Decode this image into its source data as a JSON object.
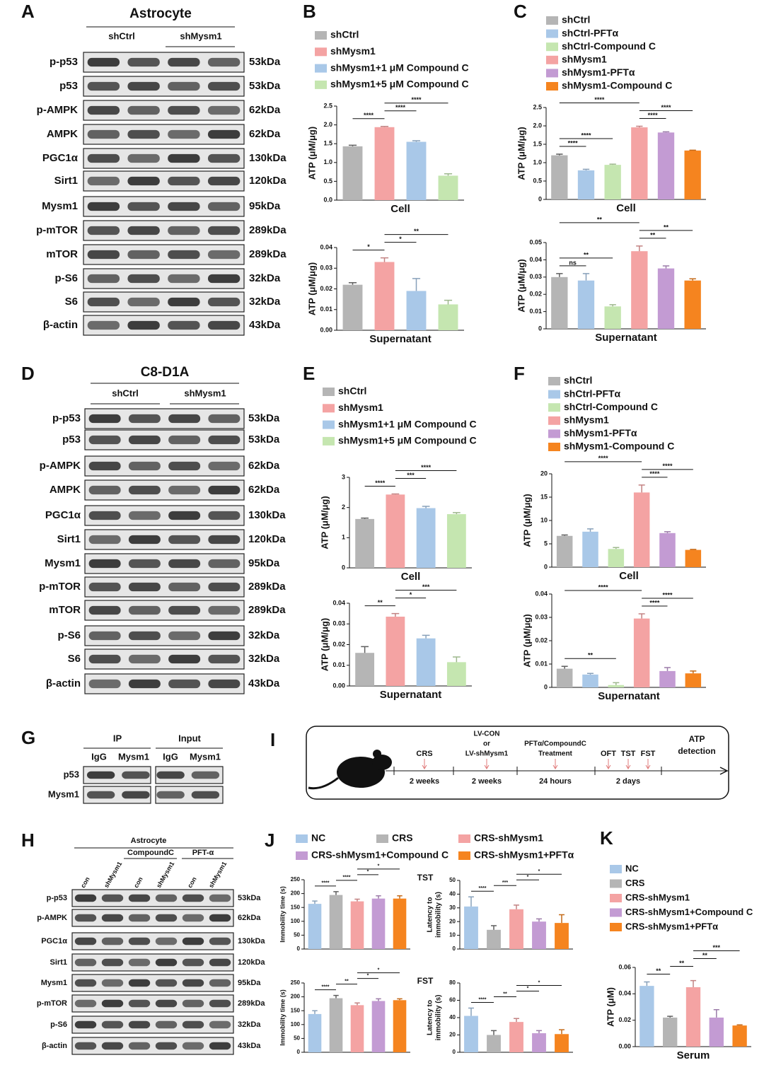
{
  "panel_letters": [
    "A",
    "B",
    "C",
    "D",
    "E",
    "F",
    "G",
    "H",
    "I",
    "J",
    "K"
  ],
  "blots": [
    {
      "title": "Astrocyte",
      "groups": [
        "shCtrl",
        "shMysm1"
      ],
      "rows": [
        {
          "label": "p-p53",
          "size": "53kDa"
        },
        {
          "label": "p53",
          "size": "53kDa"
        },
        {
          "label": "p-AMPK",
          "size": "62kDa"
        },
        {
          "label": "AMPK",
          "size": "62kDa"
        },
        {
          "label": "PGC1α",
          "size": "130kDa"
        },
        {
          "label": "Sirt1",
          "size": "120kDa"
        },
        {
          "label": "Mysm1",
          "size": "95kDa"
        },
        {
          "label": "p-mTOR",
          "size": "289kDa"
        },
        {
          "label": "mTOR",
          "size": "289kDa"
        },
        {
          "label": "p-S6",
          "size": "32kDa"
        },
        {
          "label": "S6",
          "size": "32kDa"
        },
        {
          "label": "β-actin",
          "size": "43kDa"
        }
      ]
    },
    {
      "title": "C8-D1A",
      "groups": [
        "shCtrl",
        "shMysm1"
      ],
      "rows": [
        {
          "label": "p-p53",
          "size": "53kDa"
        },
        {
          "label": "p53",
          "size": "53kDa"
        },
        {
          "label": "p-AMPK",
          "size": "62kDa"
        },
        {
          "label": "AMPK",
          "size": "62kDa"
        },
        {
          "label": "PGC1α",
          "size": "130kDa"
        },
        {
          "label": "Sirt1",
          "size": "120kDa"
        },
        {
          "label": "Mysm1",
          "size": "95kDa"
        },
        {
          "label": "p-mTOR",
          "size": "289kDa"
        },
        {
          "label": "mTOR",
          "size": "289kDa"
        },
        {
          "label": "p-S6",
          "size": "32kDa"
        },
        {
          "label": "S6",
          "size": "32kDa"
        },
        {
          "label": "β-actin",
          "size": "43kDa"
        }
      ]
    },
    {
      "groups": [
        "IP",
        "Input"
      ],
      "lanes": [
        "IgG",
        "Mysm1",
        "IgG",
        "Mysm1"
      ],
      "rows": [
        {
          "label": "p53"
        },
        {
          "label": "Mysm1"
        }
      ]
    },
    {
      "title": "Astrocyte",
      "groups": [
        "CompoundC",
        "PFT-α"
      ],
      "lanes": [
        "con",
        "shMysm1",
        "con",
        "shMysm1",
        "con",
        "shMysm1"
      ],
      "rows": [
        {
          "label": "p-p53",
          "size": "53kDa"
        },
        {
          "label": "p-AMPK",
          "size": "62kDa"
        },
        {
          "label": "PGC1α",
          "size": "130kDa"
        },
        {
          "label": "Sirt1",
          "size": "120kDa"
        },
        {
          "label": "Mysm1",
          "size": "95kDa"
        },
        {
          "label": "p-mTOR",
          "size": "289kDa"
        },
        {
          "label": "p-S6",
          "size": "32kDa"
        },
        {
          "label": "β-actin",
          "size": "43kDa"
        }
      ]
    }
  ],
  "diagram": {
    "steps": [
      {
        "event": [
          "CRS"
        ],
        "duration": "2 weeks"
      },
      {
        "event": [
          "LV-CON",
          "or",
          "LV-shMysm1"
        ],
        "duration": "2 weeks"
      },
      {
        "event": [
          "PFTα/CompoundC",
          "Treatment"
        ],
        "duration": "24 hours"
      },
      {
        "event": [
          "OFT",
          "TST",
          "FST"
        ],
        "duration": "2 days"
      }
    ],
    "end": [
      "ATP",
      "detection"
    ]
  },
  "legends": [
    {
      "items": [
        {
          "name": "shCtrl",
          "color": "#b5b5b5"
        },
        {
          "name": "shMysm1",
          "color": "#f4a3a3"
        },
        {
          "name": "shMysm1+1 μM Compound C",
          "color": "#a9c8e8"
        },
        {
          "name": "shMysm1+5 μM Compound C",
          "color": "#c5e6b0"
        }
      ]
    },
    {
      "items": [
        {
          "name": "shCtrl",
          "color": "#b5b5b5"
        },
        {
          "name": "shCtrl-PFTα",
          "color": "#a9c8e8"
        },
        {
          "name": "shCtrl-Compound C",
          "color": "#c5e6b0"
        },
        {
          "name": "shMysm1",
          "color": "#f4a3a3"
        },
        {
          "name": "shMysm1-PFTα",
          "color": "#c39bd3"
        },
        {
          "name": "shMysm1-Compound C",
          "color": "#f5841f"
        }
      ]
    },
    {
      "items": [
        {
          "name": "shCtrl",
          "color": "#b5b5b5"
        },
        {
          "name": "shMysm1",
          "color": "#f4a3a3"
        },
        {
          "name": "shMysm1+1 μM Compound C",
          "color": "#a9c8e8"
        },
        {
          "name": "shMysm1+5 μM Compound C",
          "color": "#c5e6b0"
        }
      ]
    },
    {
      "items": [
        {
          "name": "shCtrl",
          "color": "#b5b5b5"
        },
        {
          "name": "shCtrl-PFTα",
          "color": "#a9c8e8"
        },
        {
          "name": "shCtrl-Compound C",
          "color": "#c5e6b0"
        },
        {
          "name": "shMysm1",
          "color": "#f4a3a3"
        },
        {
          "name": "shMysm1-PFTα",
          "color": "#c39bd3"
        },
        {
          "name": "shMysm1-Compound C",
          "color": "#f5841f"
        }
      ]
    },
    {
      "items": [
        {
          "name": "NC",
          "color": "#a9c8e8"
        },
        {
          "name": "CRS",
          "color": "#b5b5b5"
        },
        {
          "name": "CRS-shMysm1",
          "color": "#f4a3a3"
        },
        {
          "name": "CRS-shMysm1+Compound C",
          "color": "#c39bd3"
        },
        {
          "name": "CRS-shMysm1+PFTα",
          "color": "#f5841f"
        }
      ]
    },
    {
      "items": [
        {
          "name": "NC",
          "color": "#a9c8e8"
        },
        {
          "name": "CRS",
          "color": "#b5b5b5"
        },
        {
          "name": "CRS-shMysm1",
          "color": "#f4a3a3"
        },
        {
          "name": "CRS-shMysm1+Compound C",
          "color": "#c39bd3"
        },
        {
          "name": "CRS-shMysm1+PFTα",
          "color": "#f5841f"
        }
      ]
    }
  ],
  "chart_data": [
    {
      "type": "bar",
      "xlabel": "Cell",
      "ylabel": "ATP (μM/μg)",
      "values": [
        1.43,
        1.94,
        1.55,
        0.65
      ],
      "errors": [
        0.03,
        0.02,
        0.03,
        0.05
      ],
      "colors": [
        "#b5b5b5",
        "#f4a3a3",
        "#a9c8e8",
        "#c5e6b0"
      ],
      "ylim": [
        0,
        2.5
      ],
      "yticks": [
        {
          "value": 0,
          "label": "0.0"
        },
        0.5,
        {
          "value": 1,
          "label": "1.0"
        },
        1.5,
        {
          "value": 2,
          "label": "2.0"
        },
        2.5
      ],
      "annotations": [
        {
          "from": 0,
          "to": 1,
          "label": "****"
        },
        {
          "from": 1,
          "to": 2,
          "label": "****"
        },
        {
          "from": 1,
          "to": 3,
          "label": "****"
        }
      ]
    },
    {
      "type": "bar",
      "xlabel": "Supernatant",
      "ylabel": "ATP (μM/μg)",
      "values": [
        0.022,
        0.033,
        0.019,
        0.0125
      ],
      "errors": [
        0.001,
        0.002,
        0.006,
        0.002
      ],
      "colors": [
        "#b5b5b5",
        "#f4a3a3",
        "#a9c8e8",
        "#c5e6b0"
      ],
      "ylim": [
        0,
        0.04
      ],
      "yticks": [
        {
          "value": 0,
          "label": "0.00"
        },
        0.01,
        0.02,
        0.03,
        0.04
      ],
      "annotations": [
        {
          "from": 0,
          "to": 1,
          "label": "*"
        },
        {
          "from": 1,
          "to": 2,
          "label": "*"
        },
        {
          "from": 1,
          "to": 3,
          "label": "**"
        }
      ]
    },
    {
      "type": "bar",
      "xlabel": "Cell",
      "ylabel": "ATP (μM/μg)",
      "values": [
        1.2,
        0.79,
        0.94,
        1.96,
        1.82,
        1.33
      ],
      "errors": [
        0.03,
        0.03,
        0.02,
        0.03,
        0.02,
        0.01
      ],
      "colors": [
        "#b5b5b5",
        "#a9c8e8",
        "#c5e6b0",
        "#f4a3a3",
        "#c39bd3",
        "#f5841f"
      ],
      "ylim": [
        0,
        2.5
      ],
      "yticks": [
        0,
        0.5,
        {
          "value": 1,
          "label": "1.0"
        },
        1.5,
        {
          "value": 2,
          "label": "2.0"
        },
        2.5
      ],
      "annotations": [
        {
          "from": 0,
          "to": 1,
          "label": "****"
        },
        {
          "from": 0,
          "to": 2,
          "label": "****"
        },
        {
          "from": 0,
          "to": 3,
          "label": "****"
        },
        {
          "from": 3,
          "to": 4,
          "label": "****"
        },
        {
          "from": 3,
          "to": 5,
          "label": "****"
        }
      ]
    },
    {
      "type": "bar",
      "xlabel": "Supernatant",
      "ylabel": "ATP (μM/μg)",
      "values": [
        0.03,
        0.028,
        0.013,
        0.045,
        0.035,
        0.028
      ],
      "errors": [
        0.002,
        0.004,
        0.001,
        0.003,
        0.0015,
        0.001
      ],
      "colors": [
        "#b5b5b5",
        "#a9c8e8",
        "#c5e6b0",
        "#f4a3a3",
        "#c39bd3",
        "#f5841f"
      ],
      "ylim": [
        0,
        0.05
      ],
      "yticks": [
        0,
        0.01,
        0.02,
        0.03,
        0.04,
        0.05
      ],
      "annotations": [
        {
          "from": 0,
          "to": 1,
          "label": "ns"
        },
        {
          "from": 0,
          "to": 2,
          "label": "**"
        },
        {
          "from": 0,
          "to": 3,
          "label": "**"
        },
        {
          "from": 3,
          "to": 4,
          "label": "**"
        },
        {
          "from": 3,
          "to": 5,
          "label": "**"
        }
      ]
    },
    {
      "type": "bar",
      "xlabel": "Cell",
      "ylabel": "ATP (μM/μg)",
      "values": [
        1.62,
        2.43,
        1.98,
        1.78
      ],
      "errors": [
        0.03,
        0.02,
        0.06,
        0.05
      ],
      "colors": [
        "#b5b5b5",
        "#f4a3a3",
        "#a9c8e8",
        "#c5e6b0"
      ],
      "ylim": [
        0,
        3
      ],
      "yticks": [
        0,
        1,
        2,
        3
      ],
      "annotations": [
        {
          "from": 0,
          "to": 1,
          "label": "****"
        },
        {
          "from": 1,
          "to": 2,
          "label": "***"
        },
        {
          "from": 1,
          "to": 3,
          "label": "****"
        }
      ]
    },
    {
      "type": "bar",
      "xlabel": "Supernatant",
      "ylabel": "ATP (μM/μg)",
      "values": [
        0.016,
        0.0335,
        0.023,
        0.0115
      ],
      "errors": [
        0.003,
        0.0015,
        0.0015,
        0.0025
      ],
      "colors": [
        "#b5b5b5",
        "#f4a3a3",
        "#a9c8e8",
        "#c5e6b0"
      ],
      "ylim": [
        0,
        0.04
      ],
      "yticks": [
        {
          "value": 0,
          "label": "0.00"
        },
        0.01,
        0.02,
        0.03,
        0.04
      ],
      "annotations": [
        {
          "from": 0,
          "to": 1,
          "label": "**"
        },
        {
          "from": 1,
          "to": 2,
          "label": "*"
        },
        {
          "from": 1,
          "to": 3,
          "label": "***"
        }
      ]
    },
    {
      "type": "bar",
      "xlabel": "Cell",
      "ylabel": "ATP (μM/μg)",
      "values": [
        6.7,
        7.6,
        3.9,
        16,
        7.3,
        3.7
      ],
      "errors": [
        0.2,
        0.6,
        0.3,
        1.6,
        0.3,
        0.1
      ],
      "colors": [
        "#b5b5b5",
        "#a9c8e8",
        "#c5e6b0",
        "#f4a3a3",
        "#c39bd3",
        "#f5841f"
      ],
      "ylim": [
        0,
        20
      ],
      "yticks": [
        0,
        5,
        10,
        15,
        20
      ],
      "annotations": [
        {
          "from": 0,
          "to": 3,
          "label": "****"
        },
        {
          "from": 3,
          "to": 4,
          "label": "****"
        },
        {
          "from": 3,
          "to": 5,
          "label": "****"
        }
      ]
    },
    {
      "type": "bar",
      "xlabel": "Supernatant",
      "ylabel": "ATP (μM/μg)",
      "values": [
        0.008,
        0.0055,
        0.001,
        0.0295,
        0.007,
        0.006
      ],
      "errors": [
        0.001,
        0.0005,
        0.001,
        0.002,
        0.0015,
        0.001
      ],
      "colors": [
        "#b5b5b5",
        "#a9c8e8",
        "#c5e6b0",
        "#f4a3a3",
        "#c39bd3",
        "#f5841f"
      ],
      "ylim": [
        0,
        0.04
      ],
      "yticks": [
        0,
        0.01,
        0.02,
        0.03,
        0.04
      ],
      "annotations": [
        {
          "from": 0,
          "to": 2,
          "label": "**"
        },
        {
          "from": 0,
          "to": 3,
          "label": "****"
        },
        {
          "from": 3,
          "to": 4,
          "label": "****"
        },
        {
          "from": 3,
          "to": 5,
          "label": "****"
        }
      ]
    },
    {
      "type": "bar",
      "title": "TST",
      "ylabel": "Immobility time (s)",
      "values": [
        163,
        195,
        172,
        182,
        182
      ],
      "errors": [
        10,
        12,
        8,
        10,
        10
      ],
      "colors": [
        "#a9c8e8",
        "#b5b5b5",
        "#f4a3a3",
        "#c39bd3",
        "#f5841f"
      ],
      "ylim": [
        0,
        250
      ],
      "yticks": [
        0,
        50,
        100,
        150,
        200,
        250
      ],
      "annotations": [
        {
          "from": 0,
          "to": 1,
          "label": "****"
        },
        {
          "from": 1,
          "to": 2,
          "label": "****"
        },
        {
          "from": 2,
          "to": 3,
          "label": "*"
        },
        {
          "from": 2,
          "to": 4,
          "label": "*"
        }
      ]
    },
    {
      "type": "bar",
      "ylabel": [
        "Latency to",
        "immobility (s)"
      ],
      "values": [
        31,
        14,
        29,
        20,
        19
      ],
      "errors": [
        7,
        3,
        3,
        2,
        6
      ],
      "colors": [
        "#a9c8e8",
        "#b5b5b5",
        "#f4a3a3",
        "#c39bd3",
        "#f5841f"
      ],
      "ylim": [
        0,
        50
      ],
      "yticks": [
        0,
        10,
        20,
        30,
        40,
        50
      ],
      "annotations": [
        {
          "from": 0,
          "to": 1,
          "label": "****"
        },
        {
          "from": 1,
          "to": 2,
          "label": "***"
        },
        {
          "from": 2,
          "to": 3,
          "label": "*"
        },
        {
          "from": 2,
          "to": 4,
          "label": "*"
        }
      ]
    },
    {
      "type": "bar",
      "title": "FST",
      "ylabel": "Immobility time (s)",
      "values": [
        138,
        195,
        170,
        185,
        188
      ],
      "errors": [
        12,
        10,
        8,
        8,
        5
      ],
      "colors": [
        "#a9c8e8",
        "#b5b5b5",
        "#f4a3a3",
        "#c39bd3",
        "#f5841f"
      ],
      "ylim": [
        0,
        250
      ],
      "yticks": [
        0,
        50,
        100,
        150,
        200,
        250
      ],
      "annotations": [
        {
          "from": 0,
          "to": 1,
          "label": "****"
        },
        {
          "from": 1,
          "to": 2,
          "label": "**"
        },
        {
          "from": 2,
          "to": 3,
          "label": "*"
        },
        {
          "from": 2,
          "to": 4,
          "label": "*"
        }
      ]
    },
    {
      "type": "bar",
      "ylabel": [
        "Latency to",
        "immobility (s)"
      ],
      "values": [
        42,
        20,
        35,
        22,
        21
      ],
      "errors": [
        9,
        5,
        4,
        3,
        5
      ],
      "colors": [
        "#a9c8e8",
        "#b5b5b5",
        "#f4a3a3",
        "#c39bd3",
        "#f5841f"
      ],
      "ylim": [
        0,
        80
      ],
      "yticks": [
        0,
        20,
        40,
        60,
        80
      ],
      "annotations": [
        {
          "from": 0,
          "to": 1,
          "label": "****"
        },
        {
          "from": 1,
          "to": 2,
          "label": "**"
        },
        {
          "from": 2,
          "to": 3,
          "label": "*"
        },
        {
          "from": 2,
          "to": 4,
          "label": "*"
        }
      ]
    },
    {
      "type": "bar",
      "xlabel": "Serum",
      "ylabel": "ATP (μM)",
      "values": [
        0.046,
        0.022,
        0.045,
        0.022,
        0.016
      ],
      "errors": [
        0.003,
        0.001,
        0.005,
        0.006,
        0.0005
      ],
      "colors": [
        "#a9c8e8",
        "#b5b5b5",
        "#f4a3a3",
        "#c39bd3",
        "#f5841f"
      ],
      "ylim": [
        0,
        0.06
      ],
      "yticks": [
        {
          "value": 0,
          "label": "0.00"
        },
        0.02,
        0.04,
        0.06
      ],
      "annotations": [
        {
          "from": 0,
          "to": 1,
          "label": "**"
        },
        {
          "from": 1,
          "to": 2,
          "label": "**"
        },
        {
          "from": 2,
          "to": 3,
          "label": "**"
        },
        {
          "from": 2,
          "to": 4,
          "label": "***"
        }
      ]
    }
  ]
}
